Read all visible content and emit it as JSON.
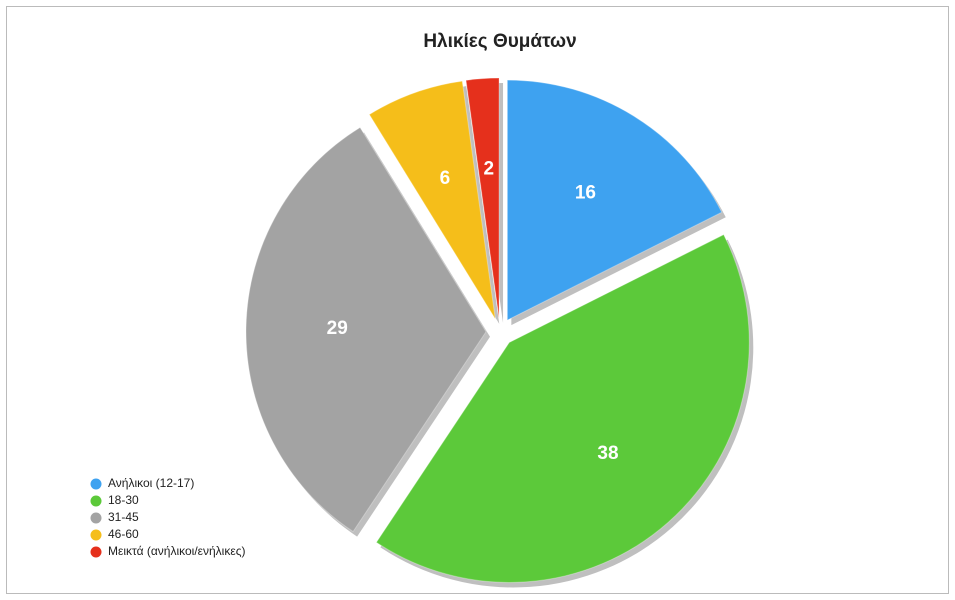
{
  "chart_data": {
    "type": "pie",
    "title": "Ηλικίες Θυμάτων",
    "categories": [
      "Ανήλικοι (12-17)",
      "18-30",
      "31-45",
      "46-60",
      "Μεικτά (ανήλικοι/ενήλικες)"
    ],
    "values": [
      16,
      38,
      29,
      6,
      2
    ],
    "colors": [
      "#3ea2f0",
      "#5cc93a",
      "#a3a3a3",
      "#f5be1a",
      "#e5301c"
    ],
    "legend": "lower left"
  }
}
